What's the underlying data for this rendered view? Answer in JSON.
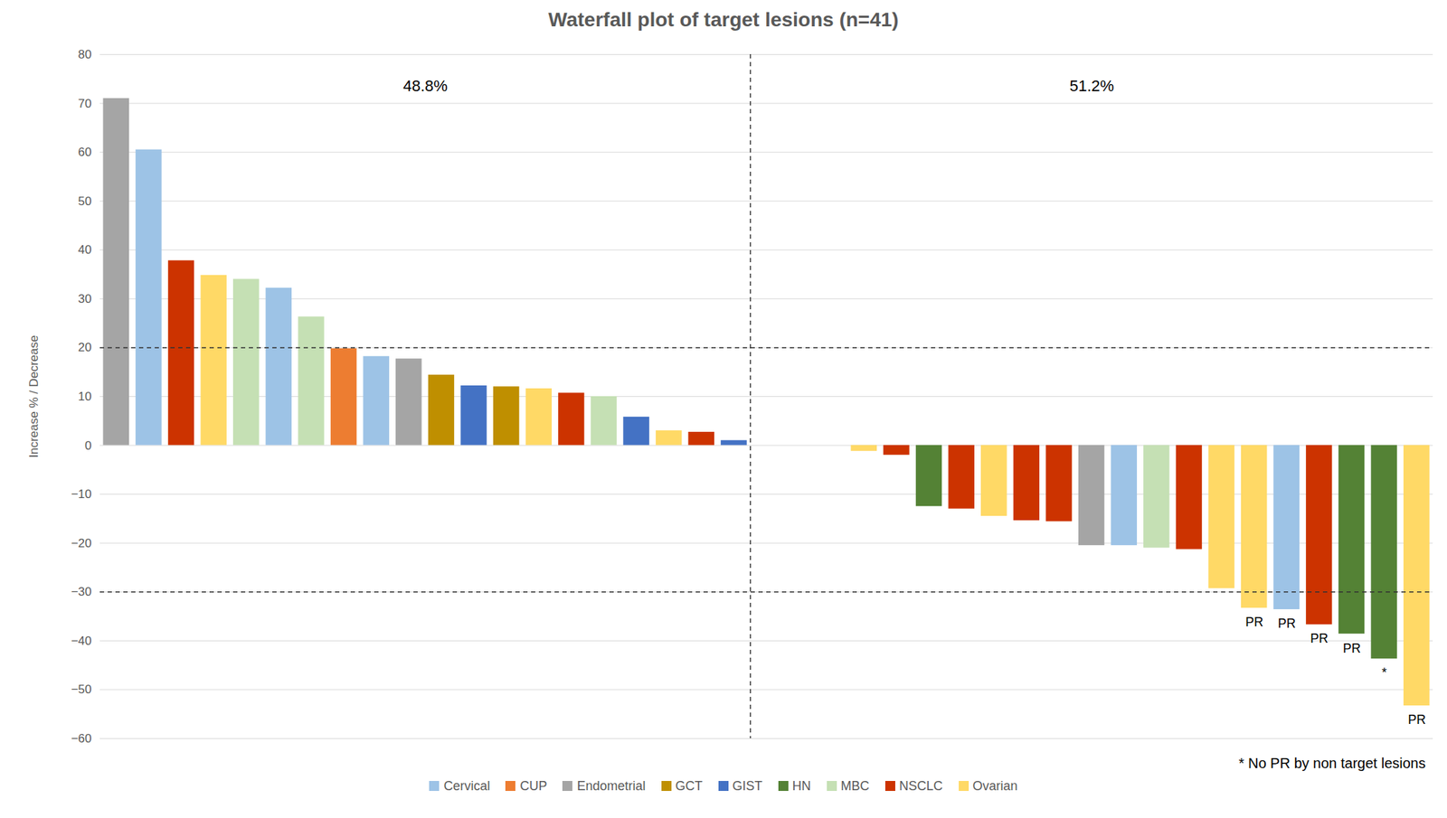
{
  "chart_data": {
    "type": "bar",
    "title": "Waterfall plot of target lesions (n=41)",
    "ylabel": "Increase % / Decrease",
    "values": [
      71,
      60.5,
      37.8,
      34.8,
      34,
      32.2,
      26.3,
      19.8,
      18.2,
      17.7,
      14.4,
      12.2,
      12,
      11.6,
      10.7,
      10,
      5.8,
      3,
      2.7,
      1,
      0,
      0,
      0,
      -1.2,
      -2,
      -12.5,
      -13,
      -14.5,
      -15.4,
      -15.6,
      -20.5,
      -20.5,
      -21,
      -21.3,
      -29.3,
      -33.3,
      -33.6,
      -36.7,
      -38.6,
      -43.7,
      -53.3
    ],
    "groups": [
      "Endometrial",
      "Cervical",
      "NSCLC",
      "Ovarian",
      "MBC",
      "Cervical",
      "MBC",
      "CUP",
      "Cervical",
      "Endometrial",
      "GCT",
      "GIST",
      "GCT",
      "Ovarian",
      "NSCLC",
      "MBC",
      "GIST",
      "Ovarian",
      "NSCLC",
      "GIST",
      null,
      null,
      null,
      "Ovarian",
      "NSCLC",
      "HN",
      "NSCLC",
      "Ovarian",
      "NSCLC",
      "NSCLC",
      "Endometrial",
      "Cervical",
      "MBC",
      "NSCLC",
      "Ovarian",
      "Ovarian",
      "Cervical",
      "NSCLC",
      "HN",
      "HN",
      "Ovarian"
    ],
    "bar_labels": [
      null,
      null,
      null,
      null,
      null,
      null,
      null,
      null,
      null,
      null,
      null,
      null,
      null,
      null,
      null,
      null,
      null,
      null,
      null,
      null,
      null,
      null,
      null,
      null,
      null,
      null,
      null,
      null,
      null,
      null,
      null,
      null,
      null,
      null,
      null,
      "PR",
      "PR",
      "PR",
      "PR",
      "*",
      "PR"
    ],
    "series": [
      {
        "name": "Cervical",
        "color": "#9dc3e6"
      },
      {
        "name": "CUP",
        "color": "#ed7d31"
      },
      {
        "name": "Endometrial",
        "color": "#a5a5a5"
      },
      {
        "name": "GCT",
        "color": "#bf8f00"
      },
      {
        "name": "GIST",
        "color": "#4472c4"
      },
      {
        "name": "HN",
        "color": "#548235"
      },
      {
        "name": "MBC",
        "color": "#c5e0b4"
      },
      {
        "name": "NSCLC",
        "color": "#cc3300"
      },
      {
        "name": "Ovarian",
        "color": "#ffd966"
      }
    ],
    "group_shares": [
      "48.8%",
      "51.2%"
    ],
    "reference_lines": [
      20,
      -30
    ],
    "footnote": "* No PR by non target lesions",
    "ylim": [
      -60,
      80
    ],
    "yticks": [
      -60,
      -50,
      -40,
      -30,
      -20,
      -10,
      0,
      10,
      20,
      30,
      40,
      50,
      60,
      70,
      80
    ],
    "grid": true,
    "legend": "bottom",
    "tick_labels": "y"
  }
}
